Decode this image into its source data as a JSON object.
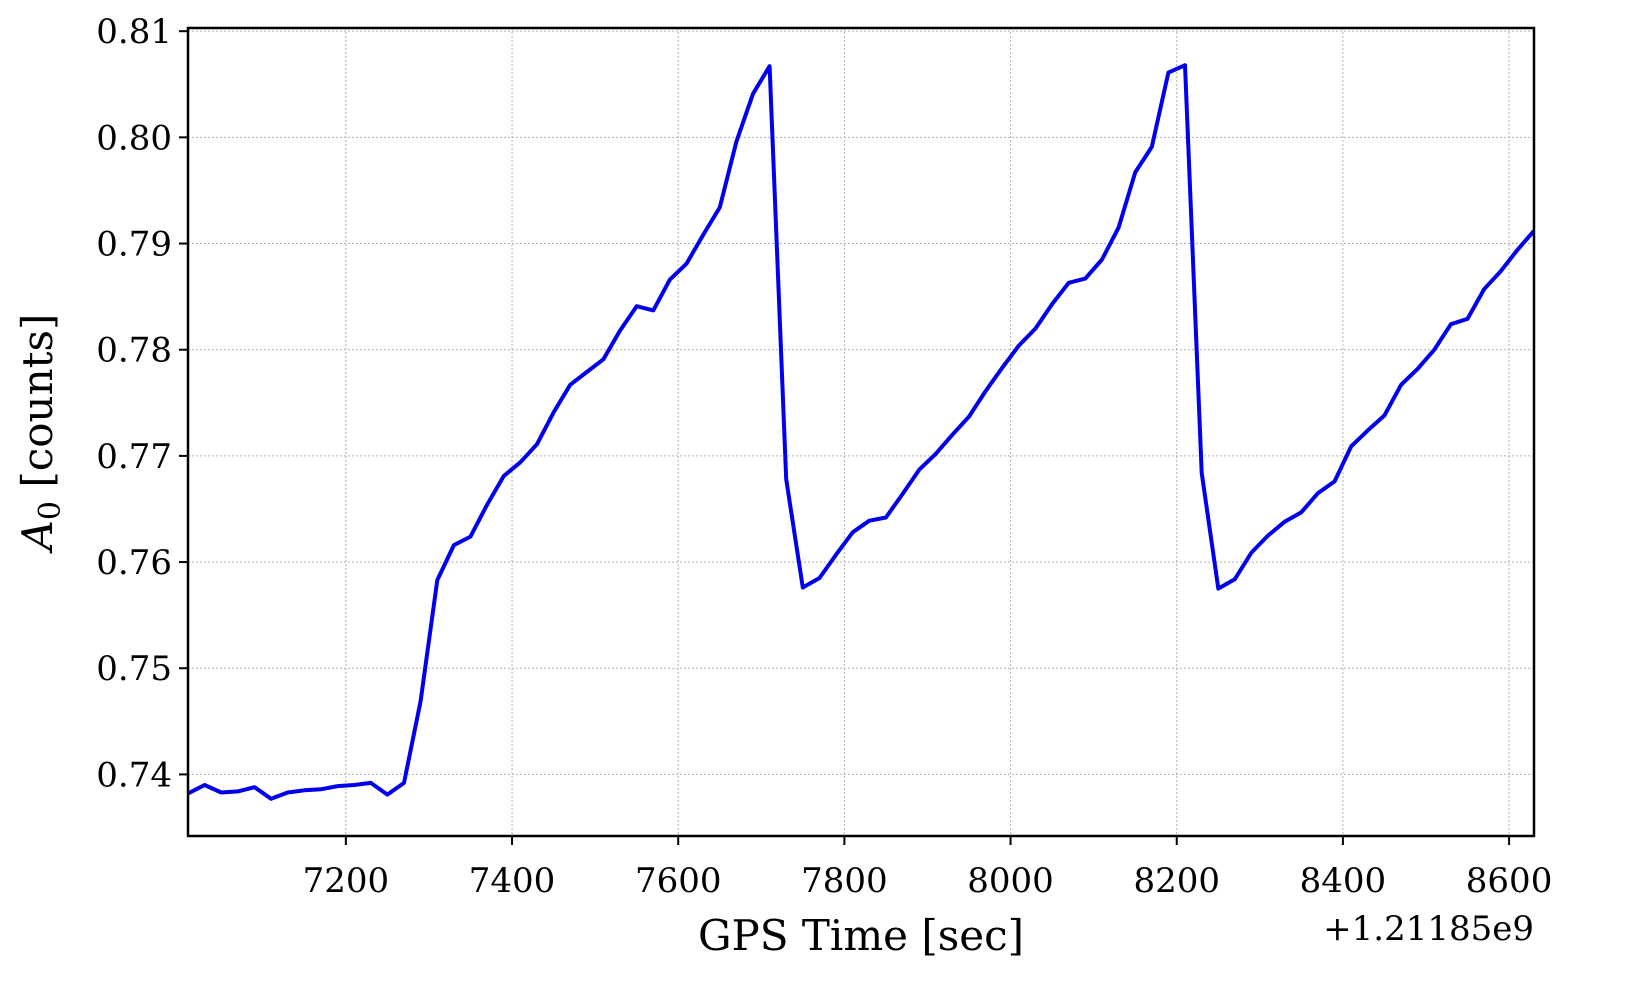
{
  "chart_data": {
    "type": "line",
    "xlabel": "GPS Time [sec]",
    "ylabel": "A0 [counts]",
    "ylabel_base": "A",
    "ylabel_sub": "0",
    "ylabel_rest": " [counts]",
    "x_offset_label": "+1.21185e9",
    "xlim": [
      7010,
      8630
    ],
    "ylim": [
      0.7342,
      0.8103
    ],
    "x_ticks": [
      7200,
      7400,
      7600,
      7800,
      8000,
      8200,
      8400,
      8600
    ],
    "x_tick_labels": [
      "7200",
      "7400",
      "7600",
      "7800",
      "8000",
      "8200",
      "8400",
      "8600"
    ],
    "y_ticks": [
      0.74,
      0.75,
      0.76,
      0.77,
      0.78,
      0.79,
      0.8,
      0.81
    ],
    "y_tick_labels": [
      "0.74",
      "0.75",
      "0.76",
      "0.77",
      "0.78",
      "0.79",
      "0.80",
      "0.81"
    ],
    "grid": true,
    "series": [
      {
        "color": "#0000ee",
        "x": [
          7010,
          7030,
          7050,
          7070,
          7090,
          7110,
          7130,
          7150,
          7170,
          7190,
          7210,
          7230,
          7250,
          7270,
          7290,
          7310,
          7330,
          7350,
          7370,
          7390,
          7410,
          7430,
          7450,
          7470,
          7490,
          7510,
          7530,
          7550,
          7570,
          7590,
          7610,
          7630,
          7650,
          7670,
          7690,
          7710,
          7730,
          7750,
          7770,
          7790,
          7810,
          7830,
          7850,
          7870,
          7890,
          7910,
          7930,
          7950,
          7970,
          7990,
          8010,
          8030,
          8050,
          8070,
          8090,
          8110,
          8130,
          8150,
          8170,
          8190,
          8210,
          8230,
          8250,
          8270,
          8290,
          8310,
          8330,
          8350,
          8370,
          8390,
          8410,
          8430,
          8450,
          8470,
          8490,
          8510,
          8530,
          8550,
          8570,
          8590,
          8610,
          8630
        ],
        "values": [
          0.7382,
          0.739,
          0.7383,
          0.7384,
          0.7388,
          0.7377,
          0.7383,
          0.7385,
          0.7386,
          0.7389,
          0.739,
          0.7392,
          0.7381,
          0.7392,
          0.7469,
          0.7583,
          0.7616,
          0.7624,
          0.7654,
          0.7681,
          0.7694,
          0.7711,
          0.7741,
          0.7767,
          0.7779,
          0.7791,
          0.7818,
          0.7841,
          0.7837,
          0.7866,
          0.7881,
          0.7908,
          0.7934,
          0.7996,
          0.8041,
          0.8067,
          0.7678,
          0.7576,
          0.7585,
          0.7607,
          0.7628,
          0.7639,
          0.7642,
          0.7664,
          0.7687,
          0.7702,
          0.772,
          0.7737,
          0.7761,
          0.7783,
          0.7804,
          0.782,
          0.7843,
          0.7863,
          0.7867,
          0.7885,
          0.7915,
          0.7967,
          0.7991,
          0.8061,
          0.8068,
          0.7684,
          0.7575,
          0.7584,
          0.7609,
          0.7625,
          0.7638,
          0.7647,
          0.7665,
          0.7676,
          0.7709,
          0.7724,
          0.7738,
          0.7767,
          0.7782,
          0.78,
          0.7824,
          0.7829,
          0.7857,
          0.7874,
          0.7894,
          0.7912
        ]
      }
    ]
  }
}
